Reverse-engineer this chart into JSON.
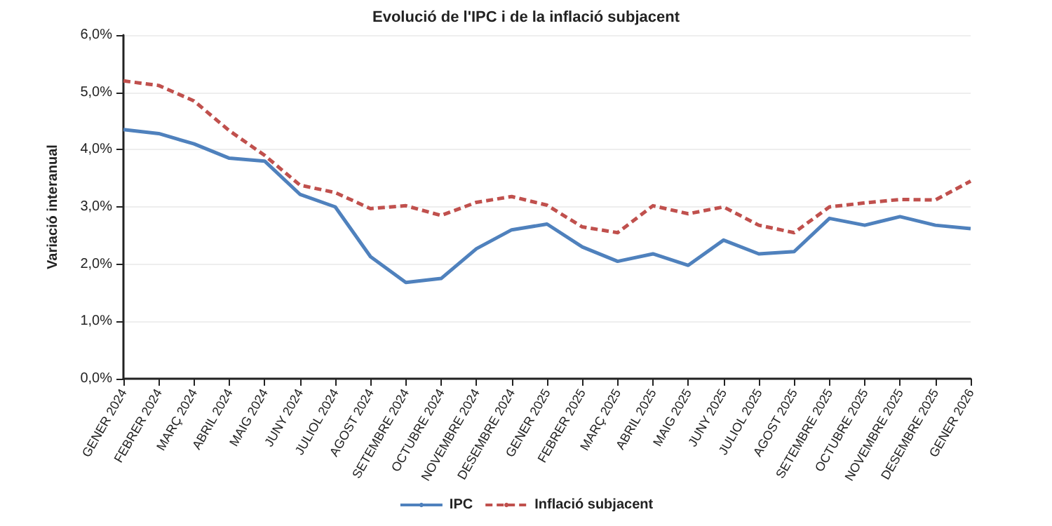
{
  "chart_data": {
    "type": "line",
    "title": "Evolució de l'IPC i de la inflació subjacent",
    "ylabel": "Variació interanual",
    "categories": [
      "GENER 2024",
      "FEBRER 2024",
      "MARÇ 2024",
      "ABRIL 2024",
      "MAIG 2024",
      "JUNY 2024",
      "JULIOL 2024",
      "AGOST 2024",
      "SETEMBRE 2024",
      "OCTUBRE 2024",
      "NOVEMBRE 2024",
      "DESEMBRE 2024",
      "GENER 2025",
      "FEBRER 2025",
      "MARÇ 2025",
      "ABRIL 2025",
      "MAIG 2025",
      "JUNY 2025",
      "JULIOL 2025",
      "AGOST 2025",
      "SETEMBRE 2025",
      "OCTUBRE 2025",
      "NOVEMBRE 2025",
      "DESEMBRE 2025",
      "GENER 2026"
    ],
    "series": [
      {
        "name": "IPC",
        "color": "#4f81bd",
        "line_style": "solid",
        "values": [
          4.35,
          4.28,
          4.1,
          3.85,
          3.8,
          3.22,
          3.0,
          2.13,
          1.68,
          1.75,
          2.27,
          2.6,
          2.7,
          2.3,
          2.05,
          2.18,
          1.98,
          2.42,
          2.18,
          2.22,
          2.8,
          2.68,
          2.83,
          2.68,
          2.62
        ]
      },
      {
        "name": "Inflació subjacent",
        "color": "#c0504d",
        "line_style": "dashed",
        "values": [
          5.2,
          5.12,
          4.85,
          4.33,
          3.9,
          3.38,
          3.25,
          2.97,
          3.02,
          2.85,
          3.08,
          3.18,
          3.03,
          2.65,
          2.55,
          3.02,
          2.88,
          3.0,
          2.68,
          2.55,
          3.0,
          3.07,
          3.13,
          3.12,
          3.45
        ]
      }
    ],
    "ylim": [
      0,
      6
    ],
    "yticks": [
      {
        "value": 0,
        "label": "0,0%"
      },
      {
        "value": 1,
        "label": "1,0%"
      },
      {
        "value": 2,
        "label": "2,0%"
      },
      {
        "value": 3,
        "label": "3,0%"
      },
      {
        "value": 4,
        "label": "4,0%"
      },
      {
        "value": 5,
        "label": "5,0%"
      },
      {
        "value": 6,
        "label": "6,0%"
      }
    ],
    "grid": "y",
    "legend": "bottom",
    "marker": "none"
  }
}
